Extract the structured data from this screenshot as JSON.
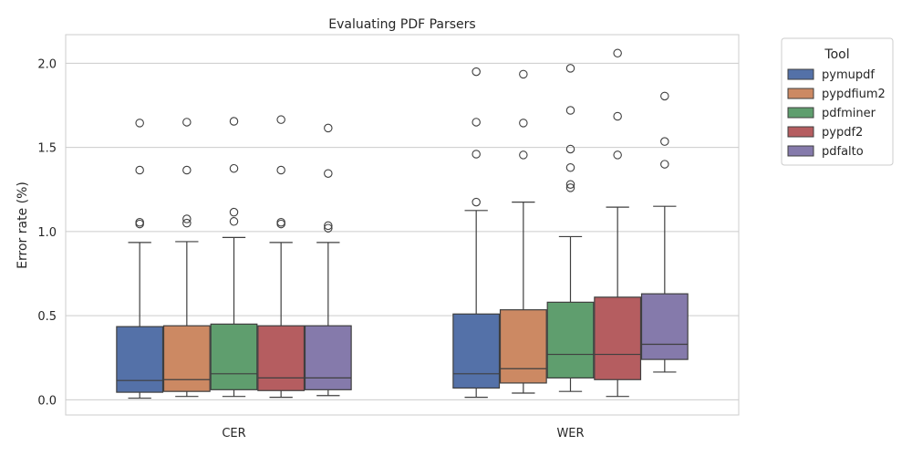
{
  "chart_data": {
    "type": "box",
    "title": "Evaluating PDF Parsers",
    "xlabel": "",
    "ylabel": "Error rate (%)",
    "ylim": [
      -0.09,
      2.17
    ],
    "yticks": [
      0.0,
      0.5,
      1.0,
      1.5,
      2.0
    ],
    "ytick_labels": [
      "0.0",
      "0.5",
      "1.0",
      "1.5",
      "2.0"
    ],
    "grid": "horizontal",
    "categories": [
      "CER",
      "WER"
    ],
    "legend": {
      "title": "Tool",
      "placement": "outside-top-right"
    },
    "series": [
      {
        "name": "pymupdf",
        "color": "#5471a8",
        "boxes": [
          {
            "whisker_low": 0.01,
            "q1": 0.045,
            "median": 0.115,
            "q3": 0.435,
            "whisker_high": 0.935,
            "outliers": [
              1.045,
              1.055,
              1.365,
              1.645
            ]
          },
          {
            "whisker_low": 0.015,
            "q1": 0.07,
            "median": 0.155,
            "q3": 0.51,
            "whisker_high": 1.125,
            "outliers": [
              1.175,
              1.46,
              1.65,
              1.95
            ]
          }
        ]
      },
      {
        "name": "pypdfium2",
        "color": "#cc8963",
        "boxes": [
          {
            "whisker_low": 0.02,
            "q1": 0.05,
            "median": 0.12,
            "q3": 0.44,
            "whisker_high": 0.94,
            "outliers": [
              1.05,
              1.075,
              1.365,
              1.65
            ]
          },
          {
            "whisker_low": 0.04,
            "q1": 0.1,
            "median": 0.185,
            "q3": 0.535,
            "whisker_high": 1.175,
            "outliers": [
              1.455,
              1.645,
              1.935
            ]
          }
        ]
      },
      {
        "name": "pdfminer",
        "color": "#5f9e6e",
        "boxes": [
          {
            "whisker_low": 0.02,
            "q1": 0.06,
            "median": 0.155,
            "q3": 0.45,
            "whisker_high": 0.965,
            "outliers": [
              1.06,
              1.115,
              1.375,
              1.655
            ]
          },
          {
            "whisker_low": 0.05,
            "q1": 0.13,
            "median": 0.27,
            "q3": 0.58,
            "whisker_high": 0.97,
            "outliers": [
              1.26,
              1.28,
              1.38,
              1.49,
              1.72,
              1.97
            ]
          }
        ]
      },
      {
        "name": "pypdf2",
        "color": "#b55d60",
        "boxes": [
          {
            "whisker_low": 0.015,
            "q1": 0.055,
            "median": 0.13,
            "q3": 0.44,
            "whisker_high": 0.935,
            "outliers": [
              1.045,
              1.055,
              1.365,
              1.665
            ]
          },
          {
            "whisker_low": 0.02,
            "q1": 0.12,
            "median": 0.27,
            "q3": 0.61,
            "whisker_high": 1.145,
            "outliers": [
              1.455,
              1.685,
              2.06
            ]
          }
        ]
      },
      {
        "name": "pdfalto",
        "color": "#857aab",
        "boxes": [
          {
            "whisker_low": 0.025,
            "q1": 0.06,
            "median": 0.13,
            "q3": 0.44,
            "whisker_high": 0.935,
            "outliers": [
              1.02,
              1.035,
              1.345,
              1.615
            ]
          },
          {
            "whisker_low": 0.165,
            "q1": 0.24,
            "median": 0.33,
            "q3": 0.63,
            "whisker_high": 1.15,
            "outliers": [
              1.4,
              1.535,
              1.805
            ]
          }
        ]
      }
    ]
  }
}
